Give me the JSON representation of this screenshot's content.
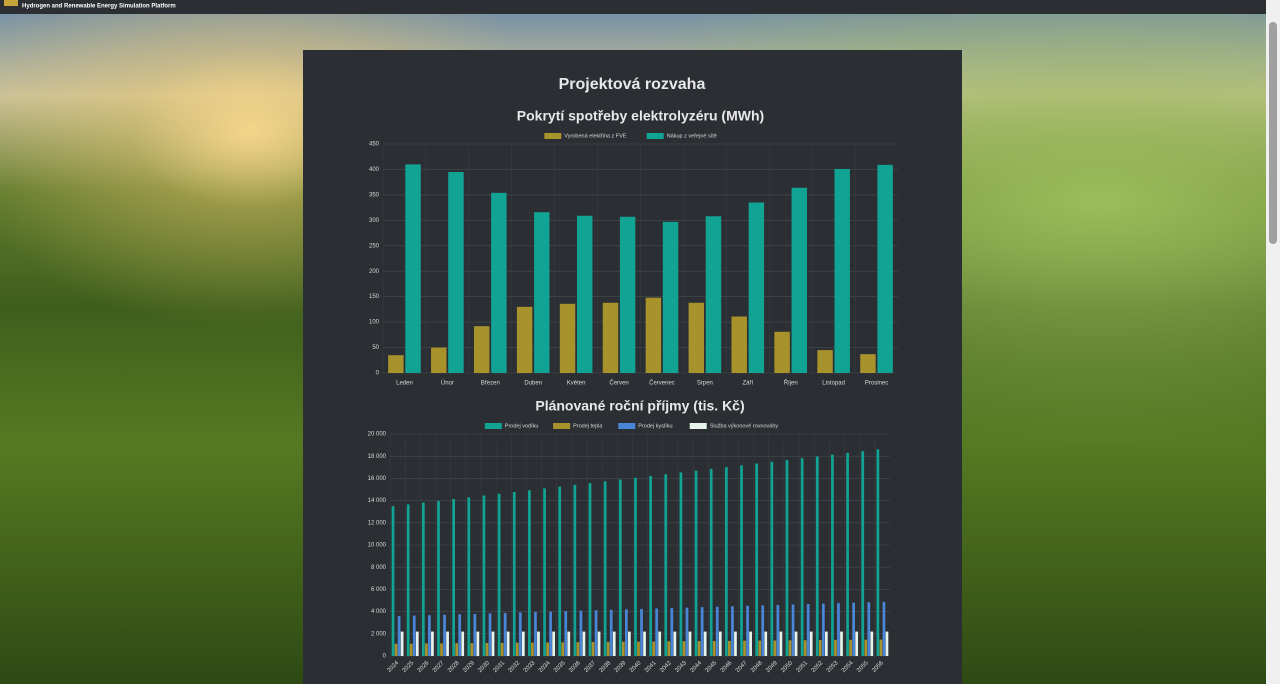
{
  "header": {
    "subtitle": "Hydrogen and Renewable Energy Simulation Platform"
  },
  "page_title": "Projektová rozvaha",
  "chart_data": [
    {
      "type": "bar",
      "title": "Pokrytí spotřeby elektrolyzéru (MWh)",
      "categories": [
        "Leden",
        "Únor",
        "Březen",
        "Duben",
        "Květen",
        "Červen",
        "Červenec",
        "Srpen",
        "Září",
        "Říjen",
        "Listopad",
        "Prosinec"
      ],
      "series": [
        {
          "name": "Vyrobená elektřina z FVE",
          "color": "#a8922c",
          "values": [
            35,
            50,
            92,
            130,
            136,
            138,
            148,
            138,
            111,
            81,
            45,
            37
          ]
        },
        {
          "name": "Nákup z veřejné sítě",
          "color": "#11a394",
          "values": [
            410,
            395,
            354,
            316,
            309,
            307,
            297,
            308,
            335,
            364,
            401,
            409
          ]
        }
      ],
      "ylim": [
        0,
        450
      ],
      "yticks": [
        0,
        50,
        100,
        150,
        200,
        250,
        300,
        350,
        400,
        450
      ],
      "grid": true,
      "legend": "top"
    },
    {
      "type": "bar",
      "title": "Plánované roční příjmy (tis. Kč)",
      "categories": [
        "2024",
        "2025",
        "2026",
        "2027",
        "2028",
        "2029",
        "2030",
        "2031",
        "2032",
        "2033",
        "2034",
        "2035",
        "2036",
        "2037",
        "2038",
        "2039",
        "2040",
        "2041",
        "2042",
        "2043",
        "2044",
        "2045",
        "2046",
        "2047",
        "2048",
        "2049",
        "2050",
        "2051",
        "2052",
        "2053",
        "2054",
        "2055",
        "2056"
      ],
      "series": [
        {
          "name": "Prodej vodíku",
          "color": "#11a394",
          "values": [
            13500,
            13660,
            13820,
            13980,
            14140,
            14300,
            14460,
            14620,
            14780,
            14940,
            15100,
            15260,
            15420,
            15580,
            15740,
            15900,
            16060,
            16220,
            16380,
            16540,
            16700,
            16860,
            17020,
            17180,
            17340,
            17500,
            17660,
            17820,
            17980,
            18140,
            18300,
            18460,
            18620
          ]
        },
        {
          "name": "Prodej tepla",
          "color": "#a8922c",
          "values": [
            1100,
            1110,
            1130,
            1140,
            1150,
            1160,
            1170,
            1180,
            1200,
            1210,
            1220,
            1230,
            1240,
            1260,
            1270,
            1280,
            1290,
            1300,
            1320,
            1330,
            1340,
            1350,
            1360,
            1380,
            1390,
            1400,
            1410,
            1420,
            1440,
            1450,
            1460,
            1470,
            1480
          ]
        },
        {
          "name": "Prodej kyslíku",
          "color": "#4a86d8",
          "values": [
            3600,
            3640,
            3680,
            3720,
            3760,
            3800,
            3840,
            3880,
            3920,
            3960,
            4000,
            4040,
            4080,
            4120,
            4160,
            4200,
            4240,
            4280,
            4320,
            4360,
            4400,
            4440,
            4480,
            4520,
            4560,
            4600,
            4640,
            4680,
            4720,
            4760,
            4800,
            4840,
            4880
          ]
        },
        {
          "name": "Služba výkonové rovnováhy",
          "color": "#e6f4ec",
          "values": [
            2200,
            2200,
            2200,
            2200,
            2200,
            2200,
            2200,
            2200,
            2200,
            2200,
            2200,
            2200,
            2200,
            2200,
            2200,
            2200,
            2200,
            2200,
            2200,
            2200,
            2200,
            2200,
            2200,
            2200,
            2200,
            2200,
            2200,
            2200,
            2200,
            2200,
            2200,
            2200,
            2200
          ]
        }
      ],
      "ylim": [
        0,
        20000
      ],
      "yticks": [
        0,
        {
          "value": 2000,
          "label": "2 000"
        },
        {
          "value": 4000,
          "label": "4 000"
        },
        {
          "value": 6000,
          "label": "6 000"
        },
        {
          "value": 8000,
          "label": "8 000"
        },
        {
          "value": 10000,
          "label": "10 000"
        },
        {
          "value": 12000,
          "label": "12 000"
        },
        {
          "value": 14000,
          "label": "14 000"
        },
        {
          "value": 16000,
          "label": "16 000"
        },
        {
          "value": 18000,
          "label": "18 000"
        },
        {
          "value": 20000,
          "label": "20 000"
        }
      ],
      "grid": true,
      "legend": "top"
    }
  ]
}
